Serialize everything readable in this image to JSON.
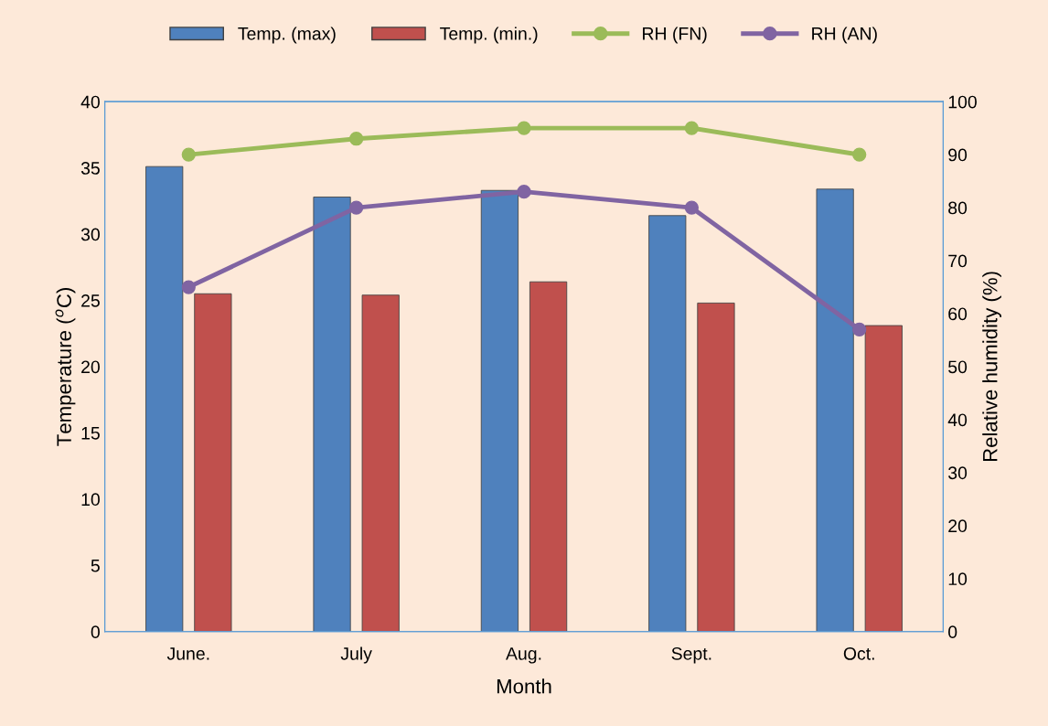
{
  "chart_data": {
    "type": "bar",
    "xlabel": "Month",
    "ylabel": "Temperature ($^{o}$C)",
    "y2label": "Relative humidity (%)",
    "categories": [
      "June.",
      "July",
      "Aug.",
      "Sept.",
      "Oct."
    ],
    "series": [
      {
        "name": "Temp. (max)",
        "color": "#4f81bd",
        "values": [
          35.1,
          32.8,
          33.3,
          31.4,
          33.4
        ]
      },
      {
        "name": "Temp. (min.)",
        "color": "#c0504d",
        "values": [
          25.5,
          25.4,
          26.4,
          24.8,
          23.1
        ]
      },
      {
        "name": "RH (FN)",
        "type": "line",
        "axis": "y2",
        "color": "#9bbb59",
        "marker": "circle",
        "values": [
          90,
          93,
          95,
          95,
          90
        ]
      },
      {
        "name": "RH (AN)",
        "type": "line",
        "axis": "y2",
        "color": "#8064a2",
        "marker": "circle",
        "values": [
          65,
          80,
          83,
          80,
          57
        ]
      }
    ],
    "ylim": [
      0,
      40
    ],
    "yticks": [
      0,
      5,
      10,
      15,
      20,
      25,
      30,
      35,
      40
    ],
    "y2lim": [
      0,
      100
    ],
    "y2ticks": [
      0,
      10,
      20,
      30,
      40,
      50,
      60,
      70,
      80,
      90,
      100
    ],
    "grid": false,
    "legend": "top"
  }
}
